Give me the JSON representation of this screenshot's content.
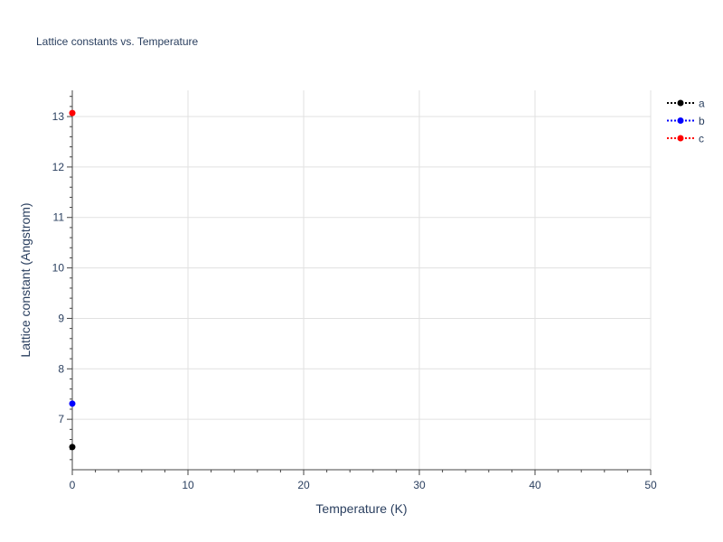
{
  "chart_data": {
    "type": "scatter",
    "title": "Lattice constants vs. Temperature",
    "xlabel": "Temperature (K)",
    "ylabel": "Lattice constant (Angstrom)",
    "xlim": [
      0,
      50
    ],
    "ylim": [
      6.0,
      13.52
    ],
    "xticks": [
      0,
      10,
      20,
      30,
      40,
      50
    ],
    "yticks": [
      7,
      8,
      9,
      10,
      11,
      12,
      13
    ],
    "grid": true,
    "legend_position": "top-right",
    "series": [
      {
        "name": "a",
        "color": "#000000",
        "x": [
          0
        ],
        "y": [
          6.45
        ]
      },
      {
        "name": "b",
        "color": "#0000ff",
        "x": [
          0
        ],
        "y": [
          7.31
        ]
      },
      {
        "name": "c",
        "color": "#ff0000",
        "x": [
          0
        ],
        "y": [
          13.07
        ]
      }
    ]
  }
}
